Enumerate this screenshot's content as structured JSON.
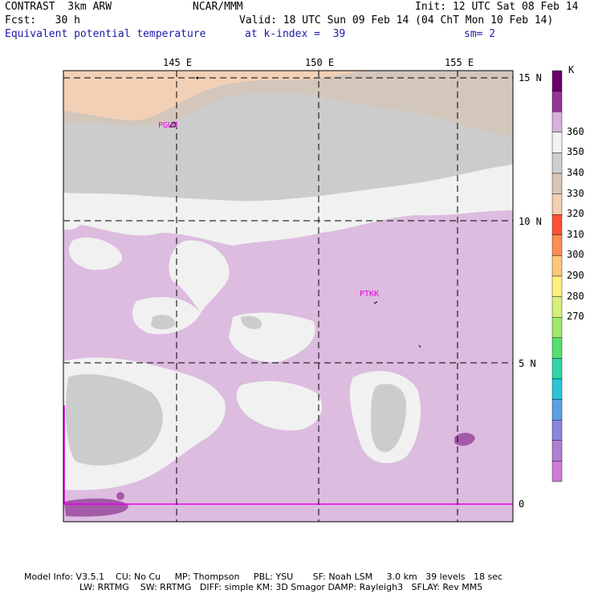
{
  "header": {
    "model": "CONTRAST  3km ARW",
    "org": "NCAR/MMM",
    "init": "Init: 12 UTC Sat 08 Feb 14",
    "fcst": "Fcst:   30 h",
    "valid": "Valid: 18 UTC Sun 09 Feb 14 (04 ChT Mon 10 Feb 14)",
    "field": "Equivalent potential temperature",
    "level": "at k-index =  39",
    "smooth": "sm= 2"
  },
  "axes": {
    "lon_labels": [
      "145 E",
      "150 E",
      "155 E"
    ],
    "lat_labels": [
      "15 N",
      "10 N",
      "5 N",
      "0"
    ]
  },
  "stations": [
    "PGUM",
    "PTKK"
  ],
  "colorbar": {
    "unit": "K",
    "tick_labels": [
      "360",
      "350",
      "340",
      "330",
      "320",
      "310",
      "300",
      "290",
      "280",
      "270"
    ],
    "colors": [
      "#6b006b",
      "#953595",
      "#d7b0dc",
      "#f2f2f2",
      "#cfcfcf",
      "#d6c6b8",
      "#f2cfb0",
      "#ff5033",
      "#ff8c50",
      "#ffc878",
      "#fff07a",
      "#d6f07a",
      "#a0ea6a",
      "#52e070",
      "#2ed6a6",
      "#28c6d6",
      "#5aa0e6",
      "#8a86dc",
      "#b07ed2",
      "#d07ad6"
    ]
  },
  "map_colors": {
    "purple_light": "#dcbcdf",
    "purple_mid": "#a35aa8",
    "white": "#f1f1f1",
    "gray": "#cccccc",
    "taupe": "#d3c6bb",
    "peach": "#f2d0b6",
    "boundary": "#e600e6"
  },
  "footer": {
    "line1": "Model Info: V3.5.1    CU: No Cu     MP: Thompson     PBL: YSU       SF: Noah LSM     3.0 km   39 levels   18 sec",
    "line2": "LW: RRTMG    SW: RRTMG   DIFF: simple KM: 3D Smagor DAMP: Rayleigh3   SFLAY: Rev MM5"
  }
}
